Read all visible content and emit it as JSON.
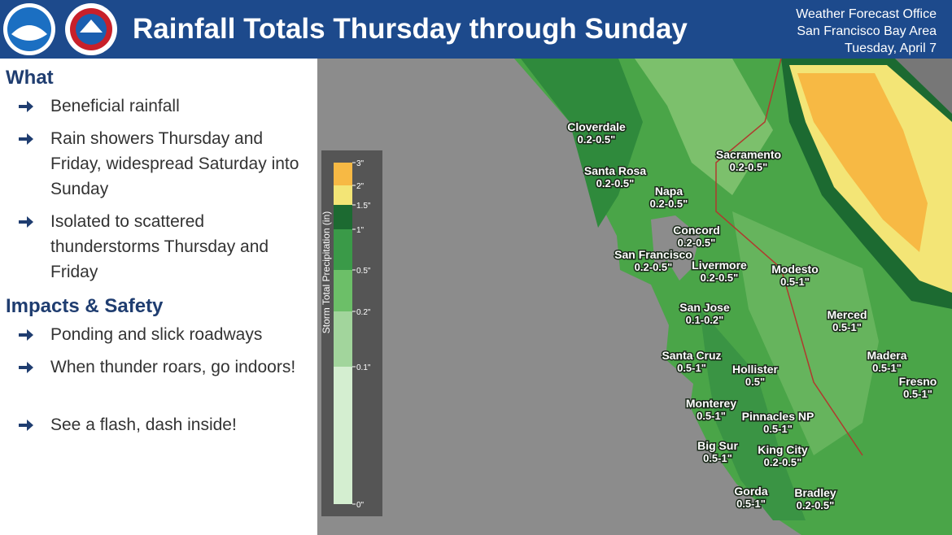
{
  "header": {
    "title": "Rainfall Totals Thursday through Sunday",
    "office": [
      "Weather Forecast Office",
      "San Francisco Bay Area",
      "Tuesday, April 7"
    ]
  },
  "sections": [
    {
      "heading": "What",
      "bullets": [
        "Beneficial rainfall",
        "Rain showers Thursday and Friday, widespread Saturday into Sunday",
        "Isolated to scattered thunderstorms Thursday and Friday"
      ]
    },
    {
      "heading": "Impacts & Safety",
      "bullets": [
        "Ponding and slick roadways",
        "When thunder roars, go indoors!",
        "See a flash, dash inside!"
      ]
    }
  ],
  "legend": {
    "title": "Storm Total Precipitation (in)",
    "labels": [
      "3\"",
      "2\"",
      "1.5\"",
      "1\"",
      "0.5\"",
      "0.2\"",
      "0.1\"",
      "0\""
    ],
    "colors": [
      "#f7b944",
      "#f3e576",
      "#1c6a31",
      "#3a9a48",
      "#6cbf68",
      "#a2d59c",
      "#d4eed0"
    ]
  },
  "places": [
    {
      "name": "Cloverdale",
      "amount": "0.2-0.5\""
    },
    {
      "name": "Santa Rosa",
      "amount": "0.2-0.5\""
    },
    {
      "name": "Napa",
      "amount": "0.2-0.5\""
    },
    {
      "name": "Sacramento",
      "amount": "0.2-0.5\""
    },
    {
      "name": "Concord",
      "amount": "0.2-0.5\""
    },
    {
      "name": "San Francisco",
      "amount": "0.2-0.5\""
    },
    {
      "name": "Livermore",
      "amount": "0.2-0.5\""
    },
    {
      "name": "Modesto",
      "amount": "0.5-1\""
    },
    {
      "name": "San Jose",
      "amount": "0.1-0.2\""
    },
    {
      "name": "Merced",
      "amount": "0.5-1\""
    },
    {
      "name": "Santa Cruz",
      "amount": "0.5-1\""
    },
    {
      "name": "Madera",
      "amount": "0.5-1\""
    },
    {
      "name": "Hollister",
      "amount": "0.5\""
    },
    {
      "name": "Fresno",
      "amount": "0.5-1\""
    },
    {
      "name": "Monterey",
      "amount": "0.5-1\""
    },
    {
      "name": "Pinnacles NP",
      "amount": "0.5-1\""
    },
    {
      "name": "Big Sur",
      "amount": "0.5-1\""
    },
    {
      "name": "King City",
      "amount": "0.2-0.5\""
    },
    {
      "name": "Gorda",
      "amount": "0.5-1\""
    },
    {
      "name": "Bradley",
      "amount": "0.2-0.5\""
    }
  ]
}
